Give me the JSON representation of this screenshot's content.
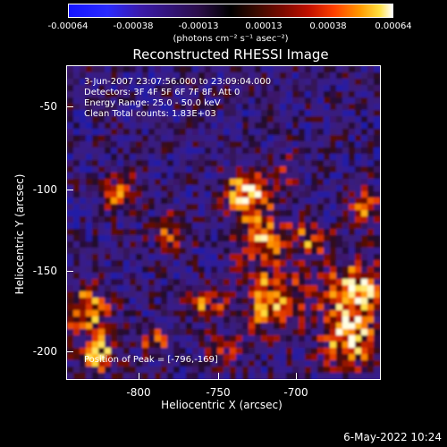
{
  "colorbar": {
    "ticks": [
      "-0.00064",
      "-0.00038",
      "-0.00013",
      "0.00013",
      "0.00038",
      "0.00064"
    ],
    "units": "(photons cm⁻² s⁻¹ asec⁻²)"
  },
  "title": "Reconstructed RHESSI Image",
  "info": {
    "time_range": "3-Jun-2007 23:07:56.000 to 23:09:04.000",
    "detectors": "Detectors: 3F 4F 5F 6F 7F 8F, Att 0",
    "energy": "Energy Range: 25.0 - 50.0 keV",
    "algorithm": "Clean    Total counts: 1.83E+03",
    "peak": "Position of Peak = [-796,-169]"
  },
  "axes": {
    "ylabel": "Heliocentric Y (arcsec)",
    "xlabel": "Heliocentric X (arcsec)",
    "yticks": [
      "-50",
      "-100",
      "-150",
      "-200"
    ],
    "xticks": [
      "-800",
      "-750",
      "-700"
    ]
  },
  "footer": {
    "date": "6-May-2022 10:24"
  }
}
